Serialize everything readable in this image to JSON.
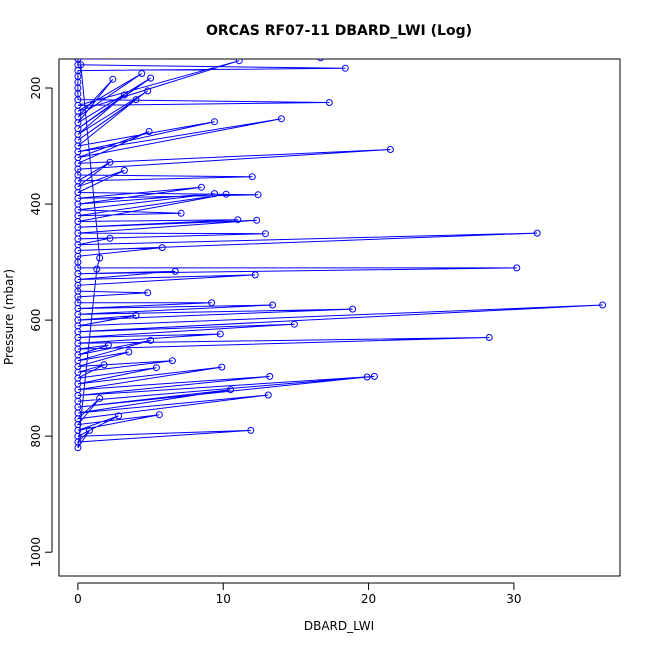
{
  "chart_data": {
    "type": "line",
    "title": "ORCAS RF07-11 DBARD_LWI (Log)",
    "xlabel": "DBARD_LWI",
    "ylabel": "Pressure (mbar)",
    "xlim": [
      -1.3,
      37.3
    ],
    "ylim": [
      1041,
      150
    ],
    "y_reversed": true,
    "x_ticks": [
      0,
      10,
      20,
      30
    ],
    "y_ticks": [
      200,
      400,
      600,
      800,
      1000
    ],
    "grid": false,
    "legend": "none",
    "color": "#0000ff",
    "marker": "open-circle",
    "series": [
      {
        "x": [
          16.7,
          18.4,
          17.3,
          11.1,
          4.4,
          2.4,
          5.0,
          3.2,
          4.8,
          4.0,
          9.4,
          14.0,
          4.9,
          21.5,
          12.0,
          2.2,
          3.2,
          12.4,
          8.5,
          9.4,
          7.1,
          10.2,
          11.0,
          12.3,
          12.9,
          2.2,
          31.6,
          5.8,
          30.2,
          6.7,
          12.2,
          4.8,
          9.2,
          13.4,
          18.9,
          4.0,
          36.1,
          14.9,
          9.8,
          28.3,
          2.1,
          5.0,
          3.5,
          6.5,
          1.8,
          5.4,
          9.9,
          13.2,
          20.4,
          19.9,
          10.5,
          13.1,
          1.5,
          5.6,
          2.8,
          11.9,
          0.8,
          1.3,
          1.5,
          0.2
        ],
        "y": [
          148,
          166,
          225,
          153,
          175,
          185,
          183,
          212,
          205,
          220,
          258,
          253,
          275,
          306,
          353,
          328,
          342,
          384,
          371,
          382,
          416,
          383,
          427,
          428,
          451,
          459,
          450,
          475,
          510,
          516,
          522,
          553,
          570,
          574,
          581,
          592,
          574,
          607,
          624,
          630,
          643,
          635,
          655,
          670,
          677,
          682,
          681,
          697,
          697,
          698,
          720,
          729,
          735,
          763,
          765,
          790,
          790,
          512,
          493,
          160
        ]
      }
    ],
    "zero_points_y": [
      150,
      160,
      170,
      180,
      190,
      200,
      210,
      220,
      230,
      240,
      250,
      260,
      270,
      280,
      290,
      300,
      310,
      320,
      330,
      340,
      350,
      360,
      370,
      380,
      390,
      400,
      410,
      420,
      430,
      440,
      450,
      460,
      470,
      480,
      490,
      500,
      510,
      520,
      530,
      540,
      550,
      560,
      570,
      580,
      590,
      600,
      610,
      620,
      630,
      640,
      650,
      660,
      670,
      680,
      690,
      700,
      710,
      720,
      730,
      740,
      750,
      760,
      770,
      780,
      790,
      800,
      810,
      820
    ]
  }
}
